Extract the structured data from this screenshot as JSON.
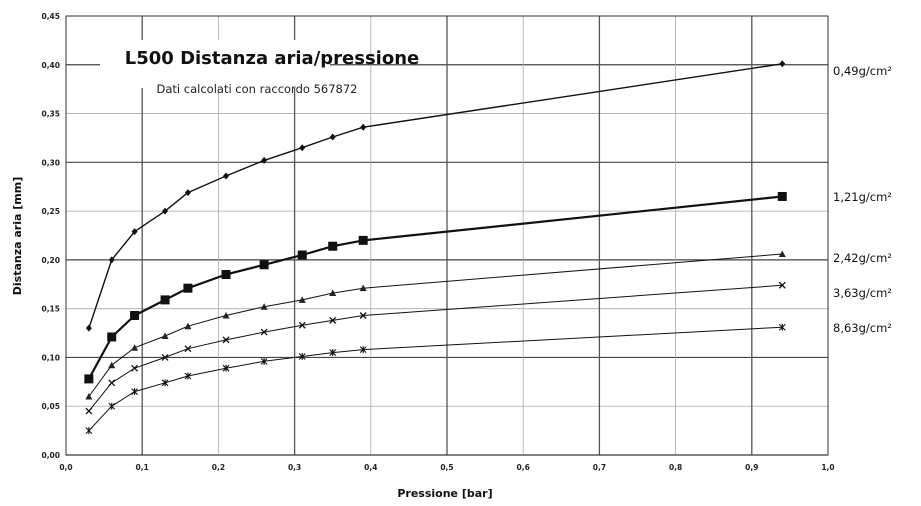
{
  "chart_data": {
    "type": "line",
    "title": "L500 Distanza aria/pressione",
    "subtitle": "Dati calcolati con raccordo 567872",
    "xlabel": "Pressione [bar]",
    "ylabel": "Distanza aria [mm]",
    "xlim": [
      0,
      1.0
    ],
    "ylim": [
      0,
      0.45
    ],
    "xticks": [
      "0,0",
      "0,1",
      "0,2",
      "0,3",
      "0,4",
      "0,5",
      "0,6",
      "0,7",
      "0,8",
      "0,9",
      "1,0"
    ],
    "yticks": [
      "0,00",
      "0,05",
      "0,10",
      "0,15",
      "0,20",
      "0,25",
      "0,30",
      "0,35",
      "0,40",
      "0,45"
    ],
    "grid": true,
    "x": [
      0.03,
      0.06,
      0.09,
      0.13,
      0.16,
      0.21,
      0.26,
      0.31,
      0.35,
      0.39,
      0.94
    ],
    "series": [
      {
        "name": "0,49g/cm²",
        "marker": "diamond",
        "values": [
          0.13,
          0.2,
          0.229,
          0.25,
          0.269,
          0.286,
          0.302,
          0.315,
          0.326,
          0.336,
          0.401
        ]
      },
      {
        "name": "1,21g/cm²",
        "marker": "square",
        "values": [
          0.078,
          0.121,
          0.143,
          0.159,
          0.171,
          0.185,
          0.195,
          0.205,
          0.214,
          0.22,
          0.265
        ]
      },
      {
        "name": "2,42g/cm²",
        "marker": "triangle",
        "values": [
          0.06,
          0.092,
          0.11,
          0.122,
          0.132,
          0.143,
          0.152,
          0.159,
          0.166,
          0.171,
          0.206
        ]
      },
      {
        "name": "3,63g/cm²",
        "marker": "x",
        "values": [
          0.045,
          0.074,
          0.089,
          0.1,
          0.109,
          0.118,
          0.126,
          0.133,
          0.138,
          0.143,
          0.174
        ]
      },
      {
        "name": "8,63g/cm²",
        "marker": "star",
        "values": [
          0.025,
          0.05,
          0.065,
          0.074,
          0.081,
          0.089,
          0.096,
          0.101,
          0.105,
          0.108,
          0.131
        ]
      }
    ]
  }
}
